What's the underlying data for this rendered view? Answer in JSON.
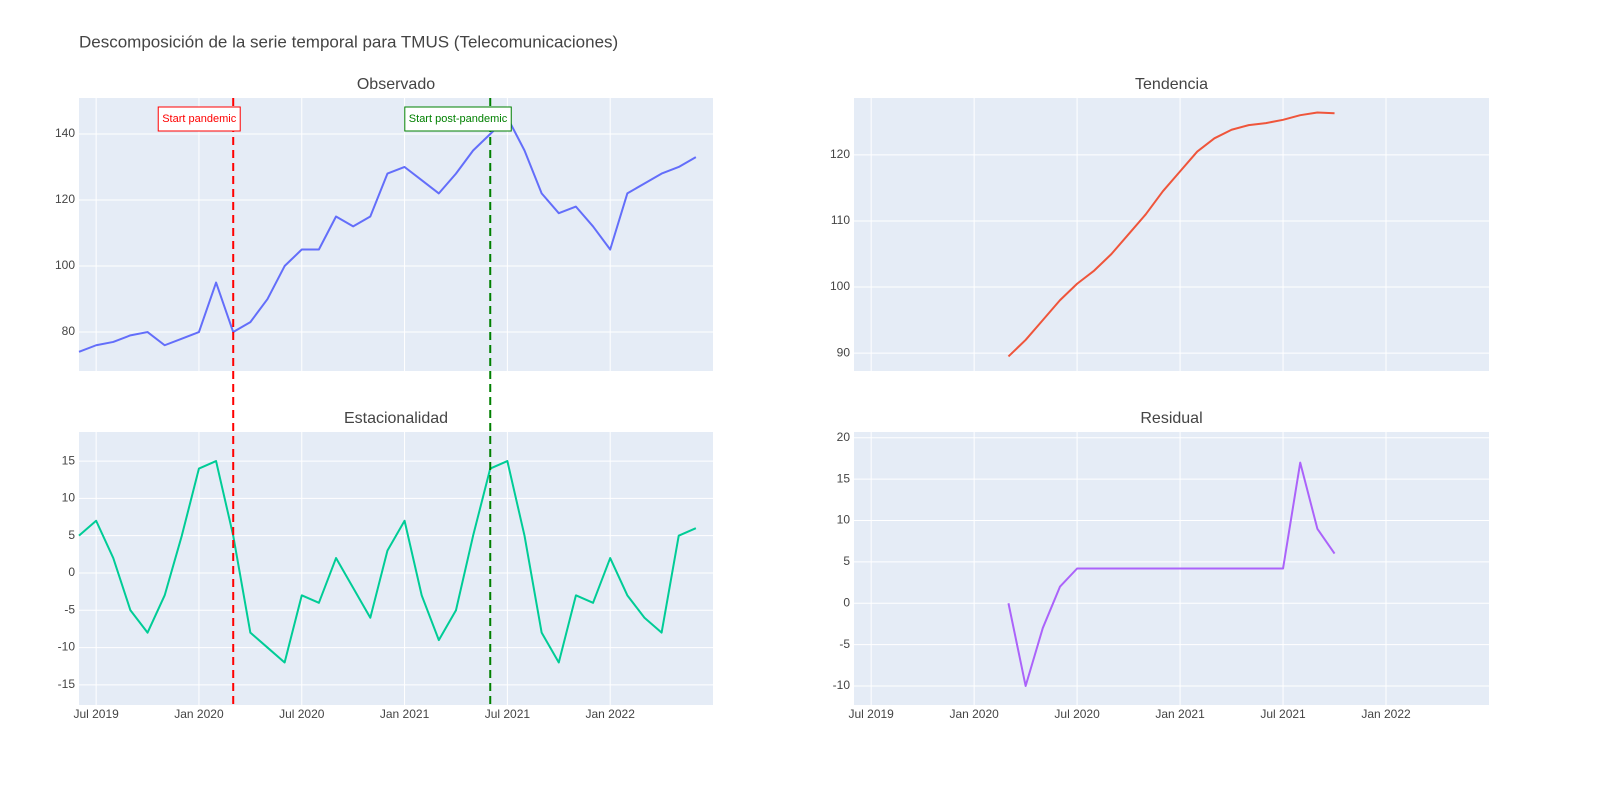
{
  "title": "Descomposición de la serie temporal para TMUS (Telecomunicaciones)",
  "chart_data": [
    {
      "type": "line",
      "title": "Observado",
      "color": "#636efa",
      "x": [
        "2019-06",
        "2019-07",
        "2019-08",
        "2019-09",
        "2019-10",
        "2019-11",
        "2019-12",
        "2020-01",
        "2020-02",
        "2020-03",
        "2020-04",
        "2020-05",
        "2020-06",
        "2020-07",
        "2020-08",
        "2020-09",
        "2020-10",
        "2020-11",
        "2020-12",
        "2021-01",
        "2021-02",
        "2021-03",
        "2021-04",
        "2021-05",
        "2021-06",
        "2021-07",
        "2021-08",
        "2021-09",
        "2021-10",
        "2021-11",
        "2021-12",
        "2022-01",
        "2022-02",
        "2022-03",
        "2022-04",
        "2022-05",
        "2022-06"
      ],
      "values": [
        74,
        76,
        77,
        79,
        80,
        76,
        78,
        80,
        95,
        80,
        83,
        90,
        100,
        105,
        105,
        115,
        112,
        115,
        128,
        130,
        126,
        122,
        128,
        135,
        140,
        145,
        135,
        122,
        116,
        118,
        112,
        105,
        122,
        125,
        128,
        130,
        133
      ],
      "xlim": [
        "2019-06",
        "2022-07"
      ],
      "ylim": [
        68.2,
        150.9
      ],
      "yticks": [
        80,
        100,
        120,
        140
      ],
      "vlines": [
        {
          "x": "2020-03",
          "text": "Start pandemic",
          "color": "red"
        },
        {
          "x": "2021-06",
          "text": "Start post-pandemic",
          "color": "green"
        }
      ]
    },
    {
      "type": "line",
      "title": "Tendencia",
      "color": "#EF553B",
      "x": [
        "2020-03",
        "2020-04",
        "2020-05",
        "2020-06",
        "2020-07",
        "2020-08",
        "2020-09",
        "2020-10",
        "2020-11",
        "2020-12",
        "2021-01",
        "2021-02",
        "2021-03",
        "2021-04",
        "2021-05",
        "2021-06",
        "2021-07",
        "2021-08",
        "2021-09",
        "2021-10"
      ],
      "values": [
        89.5,
        92,
        95,
        98,
        100.5,
        102.5,
        105,
        108,
        111,
        114.5,
        117.5,
        120.5,
        122.5,
        123.8,
        124.5,
        124.8,
        125.3,
        126,
        126.4,
        126.3
      ],
      "xlim": [
        "2019-06",
        "2022-07"
      ],
      "ylim": [
        87.3,
        128.6
      ],
      "yticks": [
        90,
        100,
        110,
        120
      ]
    },
    {
      "type": "line",
      "title": "Estacionalidad",
      "color": "#00cc96",
      "x": [
        "2019-06",
        "2019-07",
        "2019-08",
        "2019-09",
        "2019-10",
        "2019-11",
        "2019-12",
        "2020-01",
        "2020-02",
        "2020-03",
        "2020-04",
        "2020-05",
        "2020-06",
        "2020-07",
        "2020-08",
        "2020-09",
        "2020-10",
        "2020-11",
        "2020-12",
        "2021-01",
        "2021-02",
        "2021-03",
        "2021-04",
        "2021-05",
        "2021-06",
        "2021-07",
        "2021-08",
        "2021-09",
        "2021-10",
        "2021-11",
        "2021-12",
        "2022-01",
        "2022-02",
        "2022-03",
        "2022-04",
        "2022-05",
        "2022-06"
      ],
      "values": [
        5,
        7,
        2,
        -5,
        -8,
        -3,
        5,
        14,
        15,
        5,
        -8,
        -10,
        -12,
        -3,
        -4,
        2,
        -2,
        -6,
        3,
        7,
        -3,
        -9,
        -5,
        5,
        14,
        15,
        5,
        -8,
        -12,
        -3,
        -4,
        2,
        -3,
        -6,
        -8,
        5,
        6
      ],
      "xlim": [
        "2019-06",
        "2022-07"
      ],
      "ylim": [
        -17.7,
        18.9
      ],
      "yticks": [
        -15,
        -10,
        -5,
        0,
        5,
        10,
        15
      ],
      "xticks": [
        {
          "value": "2019-07",
          "label": "Jul 2019"
        },
        {
          "value": "2020-01",
          "label": "Jan 2020"
        },
        {
          "value": "2020-07",
          "label": "Jul 2020"
        },
        {
          "value": "2021-01",
          "label": "Jan 2021"
        },
        {
          "value": "2021-07",
          "label": "Jul 2021"
        },
        {
          "value": "2022-01",
          "label": "Jan 2022"
        }
      ]
    },
    {
      "type": "line",
      "title": "Residual",
      "color": "#ab63fa",
      "x": [
        "2020-03",
        "2020-04",
        "2020-05",
        "2020-06",
        "2020-07",
        "2020-08",
        "2020-09",
        "2020-10",
        "2020-11",
        "2020-12",
        "2021-01",
        "2021-02",
        "2021-03",
        "2021-04",
        "2021-05",
        "2021-06",
        "2021-07",
        "2021-08",
        "2021-09",
        "2021-10"
      ],
      "values": [
        0,
        -10,
        -3,
        2,
        4.2,
        4.2,
        4.2,
        4.2,
        4.2,
        4.2,
        4.2,
        4.2,
        4.2,
        4.2,
        4.2,
        4.2,
        4.2,
        17,
        9,
        6
      ],
      "xlim": [
        "2019-06",
        "2022-07"
      ],
      "ylim": [
        -12.3,
        20.7
      ],
      "yticks": [
        -10,
        -5,
        0,
        5,
        10,
        15,
        20
      ],
      "xticks": [
        {
          "value": "2019-07",
          "label": "Jul 2019"
        },
        {
          "value": "2020-01",
          "label": "Jan 2020"
        },
        {
          "value": "2020-07",
          "label": "Jul 2020"
        },
        {
          "value": "2021-01",
          "label": "Jan 2021"
        },
        {
          "value": "2021-07",
          "label": "Jul 2021"
        },
        {
          "value": "2022-01",
          "label": "Jan 2022"
        }
      ]
    }
  ]
}
